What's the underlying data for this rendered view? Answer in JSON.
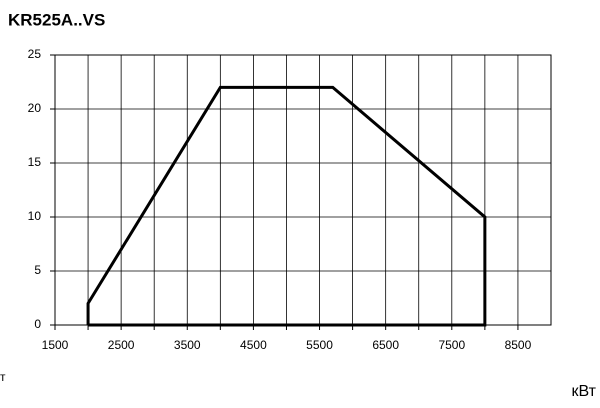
{
  "chart_data": {
    "type": "line",
    "title": "KR525A..VS",
    "x_label": "кВт",
    "y_label": "т",
    "series": [
      {
        "x": [
          2000,
          2000,
          4000,
          5700,
          8000,
          8000,
          2000
        ],
        "values": [
          0,
          2,
          22,
          22,
          10,
          0,
          0
        ],
        "color": "#000000"
      }
    ],
    "xlim": [
      1500,
      9000
    ],
    "xticks": [
      1500,
      2500,
      3500,
      4500,
      5500,
      6500,
      7500,
      8500
    ],
    "x_minor_ticks": [
      2000,
      3000,
      4000,
      5000,
      6000,
      7000,
      8000
    ],
    "ylim": [
      0,
      25
    ],
    "yticks": [
      0,
      5,
      10,
      15,
      20,
      25
    ],
    "grid": true
  }
}
